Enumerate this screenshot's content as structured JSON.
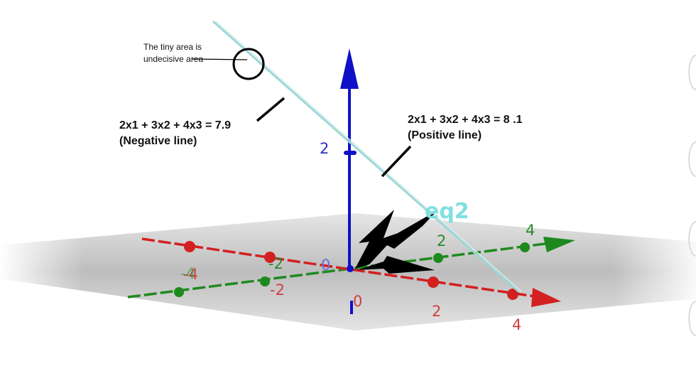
{
  "annotations": {
    "tiny_area_line1": "The tiny area is",
    "tiny_area_line2": "undecisive area",
    "negative_eq": "2x1 + 3x2 + 4x3 = 7.9",
    "negative_label": "(Negative line)",
    "positive_eq": "2x1 + 3x2 + 4x3 = 8 .1",
    "positive_label": "(Positive line)"
  },
  "graph": {
    "eq_label": "eq2",
    "origin_label": "0",
    "z_ticks": [
      "2",
      "0"
    ],
    "red_axis_ticks": [
      "-4",
      "-2",
      "2",
      "4"
    ],
    "green_axis_ticks": [
      "-4",
      "-2",
      "2",
      "4"
    ]
  },
  "colors": {
    "x_axis": "#d32020",
    "y_axis": "#1e8a1e",
    "z_axis": "#1010c8",
    "plane": "#c8c8c8",
    "line": "#a8d8d8",
    "eq_label": "#7fe0e0"
  }
}
